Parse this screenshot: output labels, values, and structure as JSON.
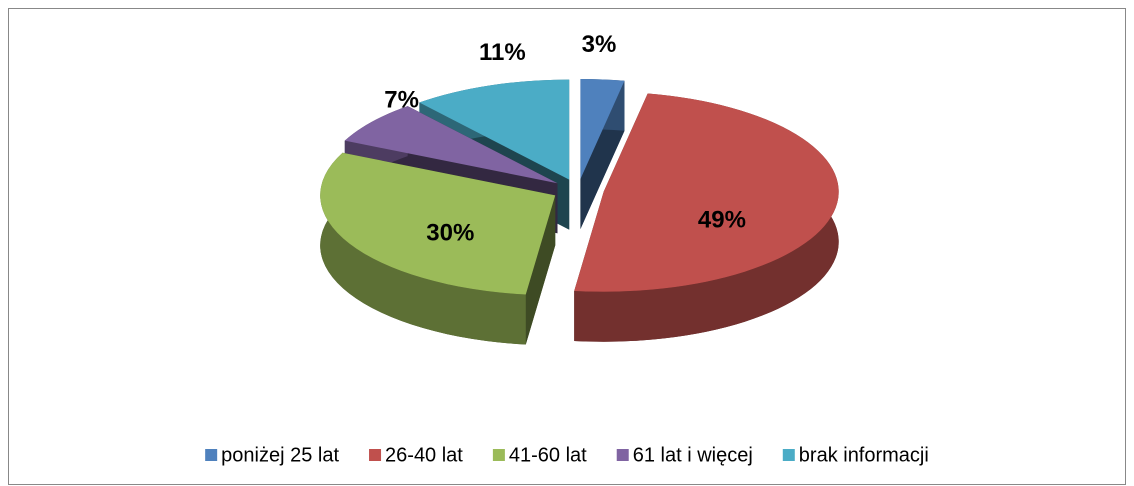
{
  "chart_data": {
    "type": "pie",
    "categories": [
      "poniżej 25 lat",
      "26-40 lat",
      "41-60 lat",
      "61 lat i więcej",
      "brak informacji"
    ],
    "values": [
      3,
      49,
      30,
      7,
      11
    ],
    "value_labels": [
      "3%",
      "49%",
      "30%",
      "7%",
      "11%"
    ],
    "colors": [
      "#4f81bd",
      "#c0504d",
      "#9bbb59",
      "#8064a2",
      "#4bacc6"
    ],
    "legend": "bottom"
  }
}
